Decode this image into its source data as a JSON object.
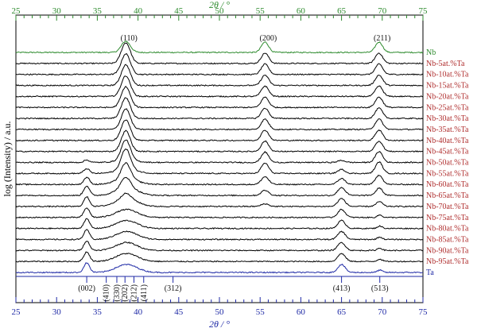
{
  "chart_data": {
    "type": "line",
    "top_axis": {
      "label": "2θ / °",
      "ticks": [
        "25",
        "30",
        "35",
        "40",
        "45",
        "50",
        "55",
        "60",
        "65",
        "70",
        "75"
      ],
      "color": "#2e8b2e"
    },
    "bottom_axis": {
      "label": "2θ / °",
      "ticks": [
        "25",
        "30",
        "35",
        "40",
        "45",
        "50",
        "55",
        "60",
        "65",
        "70",
        "75"
      ],
      "color": "#1f2aa6"
    },
    "xlim": [
      25,
      75
    ],
    "ylabel": "log (Intensity) / a.u.",
    "y_scale": "log, vertically offset stack",
    "grid": false,
    "nb_peaks": [
      {
        "label": "(110)",
        "x": 38.5
      },
      {
        "label": "(200)",
        "x": 55.6
      },
      {
        "label": "(211)",
        "x": 69.6
      }
    ],
    "ta_reference": [
      {
        "label": "(002)",
        "x": 33.7
      },
      {
        "label": "(410)",
        "x": 36.1
      },
      {
        "label": "(330)",
        "x": 37.4
      },
      {
        "label": "(202)",
        "x": 38.4
      },
      {
        "label": "(212)",
        "x": 39.5
      },
      {
        "label": "(411)",
        "x": 40.7
      },
      {
        "label": "(312)",
        "x": 44.3
      },
      {
        "label": "(413)",
        "x": 65.0
      },
      {
        "label": "(513)",
        "x": 69.7
      }
    ],
    "series": [
      {
        "name": "Nb",
        "color": "#2e8b2e"
      },
      {
        "name": "Nb-5at.%Ta",
        "color": "#b03030"
      },
      {
        "name": "Nb-10at.%Ta",
        "color": "#b03030"
      },
      {
        "name": "Nb-15at.%Ta",
        "color": "#b03030"
      },
      {
        "name": "Nb-20at.%Ta",
        "color": "#b03030"
      },
      {
        "name": "Nb-25at.%Ta",
        "color": "#b03030"
      },
      {
        "name": "Nb-30at.%Ta",
        "color": "#b03030"
      },
      {
        "name": "Nb-35at.%Ta",
        "color": "#b03030"
      },
      {
        "name": "Nb-40at.%Ta",
        "color": "#b03030"
      },
      {
        "name": "Nb-45at.%Ta",
        "color": "#b03030"
      },
      {
        "name": "Nb-50at.%Ta",
        "color": "#b03030"
      },
      {
        "name": "Nb-55at.%Ta",
        "color": "#b03030"
      },
      {
        "name": "Nb-60at.%Ta",
        "color": "#b03030"
      },
      {
        "name": "Nb-65at.%Ta",
        "color": "#b03030"
      },
      {
        "name": "Nb-70at.%Ta",
        "color": "#b03030"
      },
      {
        "name": "Nb-75at.%Ta",
        "color": "#b03030"
      },
      {
        "name": "Nb-80at.%Ta",
        "color": "#b03030"
      },
      {
        "name": "Nb-85at.%Ta",
        "color": "#b03030"
      },
      {
        "name": "Nb-90at.%Ta",
        "color": "#b03030"
      },
      {
        "name": "Nb-95at.%Ta",
        "color": "#b03030"
      },
      {
        "name": "Ta",
        "color": "#1f2aa6"
      }
    ]
  }
}
